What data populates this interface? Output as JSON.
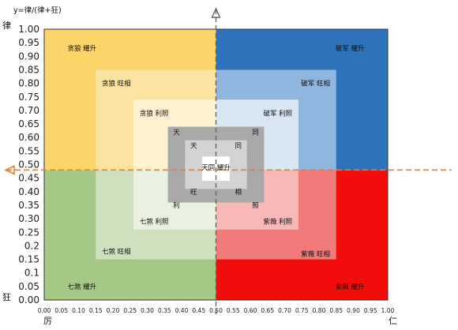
{
  "chart_data": {
    "type": "heatmap",
    "title": "y=律/(律+狂)",
    "top_y_label": "律",
    "bottom_y_label": "狂",
    "left_x_label": "厉",
    "right_x_label": "仁",
    "xlim": [
      0,
      1
    ],
    "ylim": [
      0,
      1
    ],
    "y_ticks": [
      "0.00",
      "0.05",
      "0.1",
      "0.15",
      "0.2",
      "0.25",
      "0.30",
      "0.35",
      "0.40",
      "0.45",
      "0.50",
      "0.55",
      "0.60",
      "0.65",
      "0.70",
      "0.75",
      "0.80",
      "0.85",
      "0.90",
      "0.95",
      "1.00"
    ],
    "x_ticks": [
      "0.00",
      "0.05",
      "0.10",
      "0.15",
      "0.20",
      "0.25",
      "0.30",
      "0.35",
      "0.40",
      "0.45",
      "0.50",
      "0.55",
      "0.60",
      "0.65",
      "0.70",
      "0.75",
      "0.80",
      "0.85",
      "0.90",
      "0.95",
      "1.00"
    ],
    "x_divider": 0.5,
    "y_divider": 0.48,
    "bands": [
      {
        "x0": 0.0,
        "x1": 1.0,
        "y0": 0.0,
        "y1": 1.0,
        "level": 0
      },
      {
        "x0": 0.15,
        "x1": 0.85,
        "y0": 0.15,
        "y1": 0.85,
        "level": 1
      },
      {
        "x0": 0.26,
        "x1": 0.74,
        "y0": 0.26,
        "y1": 0.74,
        "level": 2
      },
      {
        "x0": 0.36,
        "x1": 0.64,
        "y0": 0.36,
        "y1": 0.64,
        "level": 3
      },
      {
        "x0": 0.41,
        "x1": 0.59,
        "y0": 0.41,
        "y1": 0.59,
        "level": 4
      },
      {
        "x0": 0.46,
        "x1": 0.54,
        "y0": 0.44,
        "y1": 0.53,
        "level": 5
      }
    ],
    "quadrant_colors": {
      "top_left": [
        "#fbd46a",
        "#fde3a2",
        "#fef2d1"
      ],
      "top_right": [
        "#2e72ba",
        "#8fb6df",
        "#d9e6f4"
      ],
      "bottom_left": [
        "#a6c887",
        "#cfe0bf",
        "#e9f1e1"
      ],
      "bottom_right": [
        "#f20d0d",
        "#f17b7b",
        "#f8b8b8"
      ]
    },
    "center_colors": [
      "#a9a9a9",
      "#d3d3d3",
      "#ffffff"
    ],
    "labels": [
      {
        "text": "贪狼 耀升",
        "x": 0.11,
        "y": 0.93
      },
      {
        "text": "破军 耀升",
        "x": 0.89,
        "y": 0.93
      },
      {
        "text": "贪狼 旺相",
        "x": 0.21,
        "y": 0.8
      },
      {
        "text": "破军 旺相",
        "x": 0.79,
        "y": 0.8
      },
      {
        "text": "贪狼 利照",
        "x": 0.32,
        "y": 0.69
      },
      {
        "text": "破军 利照",
        "x": 0.68,
        "y": 0.69
      },
      {
        "text": "天",
        "x": 0.385,
        "y": 0.62
      },
      {
        "text": "同",
        "x": 0.615,
        "y": 0.62
      },
      {
        "text": "天",
        "x": 0.435,
        "y": 0.57
      },
      {
        "text": "同",
        "x": 0.565,
        "y": 0.57
      },
      {
        "text": "天同 耀升",
        "x": 0.5,
        "y": 0.49
      },
      {
        "text": "旺",
        "x": 0.435,
        "y": 0.4
      },
      {
        "text": "相",
        "x": 0.565,
        "y": 0.4
      },
      {
        "text": "利",
        "x": 0.385,
        "y": 0.35
      },
      {
        "text": "照",
        "x": 0.615,
        "y": 0.35
      },
      {
        "text": "七煞 利照",
        "x": 0.32,
        "y": 0.29
      },
      {
        "text": "紫薇 利照",
        "x": 0.68,
        "y": 0.29
      },
      {
        "text": "七煞 旺相",
        "x": 0.21,
        "y": 0.18
      },
      {
        "text": "紫薇 旺相",
        "x": 0.79,
        "y": 0.17
      },
      {
        "text": "七煞 耀升",
        "x": 0.11,
        "y": 0.05
      },
      {
        "text": "紫薇 耀升",
        "x": 0.89,
        "y": 0.05
      }
    ]
  }
}
